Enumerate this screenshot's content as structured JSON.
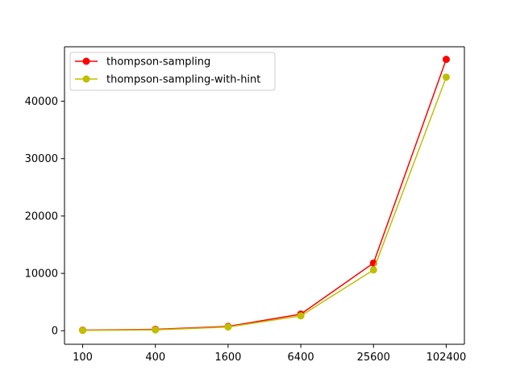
{
  "chart_data": {
    "type": "line",
    "title": "",
    "xlabel": "",
    "ylabel": "",
    "x_scale": "log",
    "categories": [
      "100",
      "400",
      "1600",
      "6400",
      "25600",
      "102400"
    ],
    "x": [
      100,
      400,
      1600,
      6400,
      25600,
      102400
    ],
    "ylim": [
      -2357,
      49497
    ],
    "yticks": [
      0,
      10000,
      20000,
      30000,
      40000
    ],
    "ytick_labels": [
      "0",
      "10000",
      "20000",
      "30000",
      "40000"
    ],
    "grid": false,
    "legend_position": "top-left",
    "series": [
      {
        "name": "thompson-sampling",
        "color": "#ff0000",
        "values": [
          100,
          250,
          750,
          2900,
          11800,
          47300
        ]
      },
      {
        "name": "thompson-sampling-with-hint",
        "color": "#bfbf00",
        "values": [
          50,
          150,
          650,
          2600,
          10600,
          44200
        ]
      }
    ]
  }
}
